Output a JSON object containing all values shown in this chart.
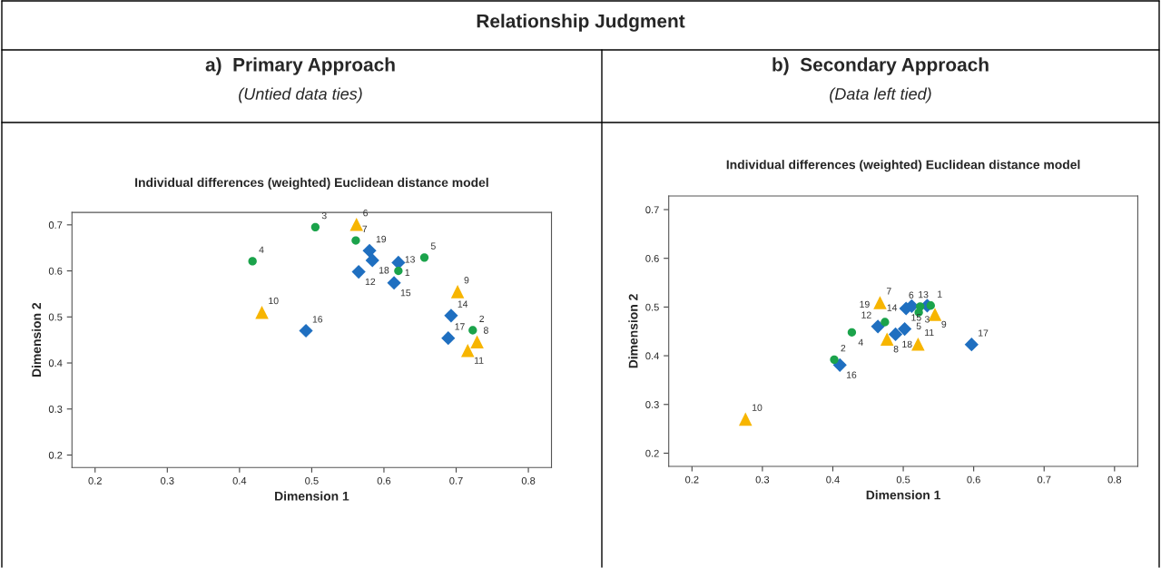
{
  "chart_data": [
    {
      "type": "scatter",
      "title": "a)  Primary Approach",
      "subtitle": "(Untied data ties)",
      "xlabel": "Dimension 1",
      "ylabel": "Dimension 2",
      "xlim": [
        0.168,
        0.832
      ],
      "ylim": [
        0.173,
        0.727
      ],
      "xticks": [
        0.2,
        0.3,
        0.4,
        0.5,
        0.6,
        0.7,
        0.8
      ],
      "yticks": [
        0.2,
        0.3,
        0.4,
        0.5,
        0.6,
        0.7
      ],
      "grid": false,
      "legend": false,
      "series": [
        {
          "color": "#1ba34b",
          "marker": "circle",
          "x": [
            0.505,
            0.418,
            0.561,
            0.656,
            0.62,
            0.723
          ],
          "values": [
            0.695,
            0.621,
            0.666,
            0.629,
            0.6,
            0.471
          ]
        },
        {
          "color": "#1f6fc0",
          "marker": "diamond",
          "x": [
            0.58,
            0.584,
            0.565,
            0.62,
            0.614,
            0.693,
            0.689,
            0.492
          ],
          "values": [
            0.644,
            0.623,
            0.598,
            0.618,
            0.574,
            0.503,
            0.454,
            0.47
          ]
        },
        {
          "color": "#f7b500",
          "marker": "triangle",
          "x": [
            0.562,
            0.431,
            0.702,
            0.729,
            0.716
          ],
          "values": [
            0.701,
            0.51,
            0.555,
            0.446,
            0.427
          ]
        }
      ],
      "annotations": [
        "Individual differences (weighted) Euclidean distance model",
        "Relationship Judgment",
        {
          "text": "3",
          "x": 0.505,
          "y": 0.695
        },
        {
          "text": "6",
          "x": 0.562,
          "y": 0.701
        },
        {
          "text": "7",
          "x": 0.561,
          "y": 0.666
        },
        {
          "text": "19",
          "x": 0.58,
          "y": 0.644
        },
        {
          "text": "4",
          "x": 0.418,
          "y": 0.621
        },
        {
          "text": "5",
          "x": 0.656,
          "y": 0.629
        },
        {
          "text": "12",
          "x": 0.565,
          "y": 0.598
        },
        {
          "text": "18",
          "x": 0.584,
          "y": 0.623
        },
        {
          "text": "13",
          "x": 0.62,
          "y": 0.6
        },
        {
          "text": "1",
          "x": 0.62,
          "y": 0.618
        },
        {
          "text": "15",
          "x": 0.614,
          "y": 0.574
        },
        {
          "text": "9",
          "x": 0.702,
          "y": 0.555
        },
        {
          "text": "10",
          "x": 0.431,
          "y": 0.51
        },
        {
          "text": "14",
          "x": 0.693,
          "y": 0.503
        },
        {
          "text": "16",
          "x": 0.492,
          "y": 0.47
        },
        {
          "text": "2",
          "x": 0.723,
          "y": 0.471
        },
        {
          "text": "17",
          "x": 0.689,
          "y": 0.454
        },
        {
          "text": "8",
          "x": 0.729,
          "y": 0.446
        },
        {
          "text": "11",
          "x": 0.716,
          "y": 0.427
        }
      ]
    },
    {
      "type": "scatter",
      "title": "b)  Secondary Approach",
      "subtitle": "(Data left tied)",
      "xlabel": "Dimension 1",
      "ylabel": "Dimension 2",
      "xlim": [
        0.167,
        0.833
      ],
      "ylim": [
        0.173,
        0.728
      ],
      "xticks": [
        0.2,
        0.3,
        0.4,
        0.5,
        0.6,
        0.7,
        0.8
      ],
      "yticks": [
        0.2,
        0.3,
        0.4,
        0.5,
        0.6,
        0.7
      ],
      "grid": false,
      "legend": false,
      "series": [
        {
          "color": "#1ba34b",
          "marker": "circle",
          "x": [
            0.402,
            0.427,
            0.474,
            0.522,
            0.524,
            0.539
          ],
          "values": [
            0.392,
            0.448,
            0.469,
            0.489,
            0.501,
            0.503
          ]
        },
        {
          "color": "#1f6fc0",
          "marker": "diamond",
          "x": [
            0.41,
            0.464,
            0.489,
            0.502,
            0.504,
            0.512,
            0.534,
            0.597
          ],
          "values": [
            0.381,
            0.46,
            0.444,
            0.455,
            0.497,
            0.502,
            0.503,
            0.423
          ]
        },
        {
          "color": "#f7b500",
          "marker": "triangle",
          "x": [
            0.467,
            0.545,
            0.477,
            0.521,
            0.276
          ],
          "values": [
            0.509,
            0.485,
            0.434,
            0.424,
            0.27
          ]
        }
      ],
      "annotations": [
        "Individual differences (weighted) Euclidean distance model",
        {
          "text": "7",
          "x": 0.467,
          "y": 0.509
        },
        {
          "text": "14",
          "x": 0.504,
          "y": 0.497
        },
        {
          "text": "13",
          "x": 0.512,
          "y": 0.502
        },
        {
          "text": "6",
          "x": 0.524,
          "y": 0.501
        },
        {
          "text": "1",
          "x": 0.539,
          "y": 0.503
        },
        {
          "text": "12",
          "x": 0.464,
          "y": 0.46
        },
        {
          "text": "4",
          "x": 0.427,
          "y": 0.448
        },
        {
          "text": "19",
          "x": 0.474,
          "y": 0.469
        },
        {
          "text": "3",
          "x": 0.534,
          "y": 0.503
        },
        {
          "text": "5",
          "x": 0.522,
          "y": 0.489
        },
        {
          "text": "9",
          "x": 0.545,
          "y": 0.485
        },
        {
          "text": "18",
          "x": 0.489,
          "y": 0.444
        },
        {
          "text": "15",
          "x": 0.502,
          "y": 0.455
        },
        {
          "text": "17",
          "x": 0.597,
          "y": 0.423
        },
        {
          "text": "2",
          "x": 0.402,
          "y": 0.392
        },
        {
          "text": "16",
          "x": 0.41,
          "y": 0.381
        },
        {
          "text": "8",
          "x": 0.477,
          "y": 0.434
        },
        {
          "text": "11",
          "x": 0.521,
          "y": 0.424
        },
        {
          "text": "10",
          "x": 0.276,
          "y": 0.27
        }
      ]
    }
  ]
}
